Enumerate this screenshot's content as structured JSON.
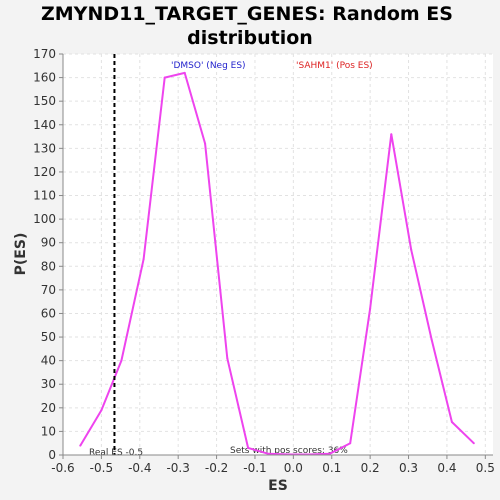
{
  "chart_data": {
    "type": "line",
    "title_lines": [
      "ZMYND11_TARGET_GENES: Random ES",
      "distribution"
    ],
    "xlabel": "ES",
    "ylabel": "P(ES)",
    "xlim": [
      -0.6,
      0.52
    ],
    "ylim": [
      0,
      170
    ],
    "x_ticks": [
      -0.6,
      -0.5,
      -0.4,
      -0.3,
      -0.2,
      -0.1,
      0.0,
      0.1,
      0.2,
      0.3,
      0.4,
      0.5
    ],
    "x_tick_labels": [
      "-0.6",
      "-0.5",
      "-0.4",
      "-0.3",
      "-0.2",
      "-0.1",
      "0.0",
      "0.1",
      "0.2",
      "0.3",
      "0.4",
      "0.5"
    ],
    "y_ticks": [
      0,
      10,
      20,
      30,
      40,
      50,
      60,
      70,
      80,
      90,
      100,
      110,
      120,
      130,
      140,
      150,
      160,
      170
    ],
    "y_tick_labels": [
      "0",
      "10",
      "20",
      "30",
      "40",
      "50",
      "60",
      "70",
      "80",
      "90",
      "100",
      "110",
      "120",
      "130",
      "140",
      "150",
      "160",
      "170"
    ],
    "grid": true,
    "series": [
      {
        "color": "#ee44ee",
        "x": [
          -0.555,
          -0.5,
          -0.448,
          -0.39,
          -0.335,
          -0.283,
          -0.23,
          -0.172,
          -0.118,
          -0.065,
          -0.01,
          0.042,
          0.095,
          0.148,
          0.2,
          0.255,
          0.307,
          0.36,
          0.413,
          0.47
        ],
        "y": [
          4,
          19,
          40,
          83,
          160,
          162,
          132,
          41,
          3,
          0.5,
          0.2,
          0.2,
          0.5,
          5,
          62,
          136,
          87,
          49,
          14,
          5
        ]
      }
    ],
    "real_es": {
      "x": -0.466,
      "label": "Real ES -0.5",
      "color": "#000000"
    },
    "annotations": {
      "neg_label": "'DMSO' (Neg ES)",
      "neg_color": "#2222cc",
      "pos_label": "'SAHM1' (Pos ES)",
      "pos_color": "#dd2222",
      "pos_scores_label": "Sets with pos scores: 36%"
    }
  }
}
